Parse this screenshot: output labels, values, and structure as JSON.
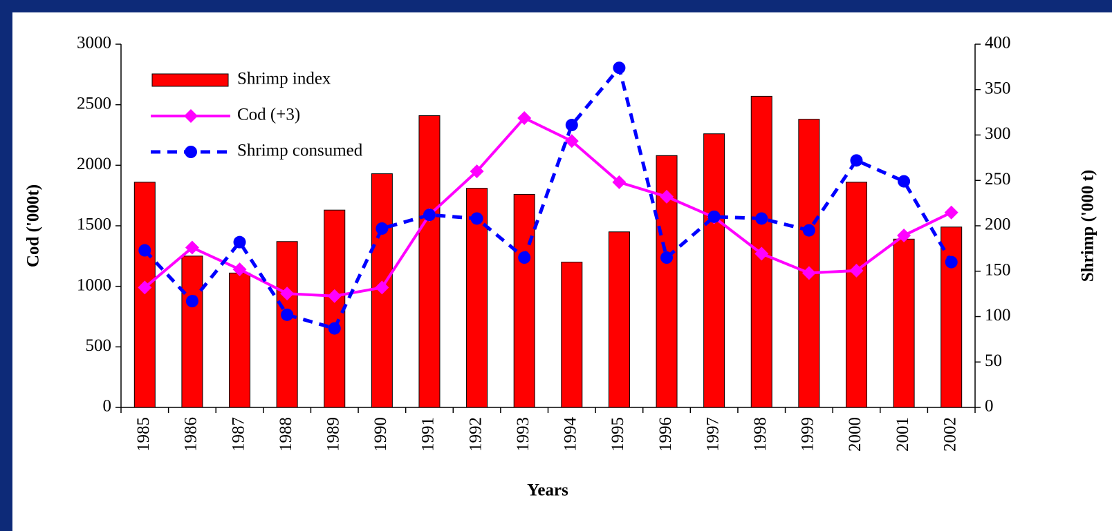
{
  "chart_data": {
    "type": "bar_line",
    "x_label": "Years",
    "y_label": "Cod ('000t)",
    "y2_label": "Shrimp ('000 t)",
    "categories": [
      "1985",
      "1986",
      "1987",
      "1988",
      "1989",
      "1990",
      "1991",
      "1992",
      "1993",
      "1994",
      "1995",
      "1996",
      "1997",
      "1998",
      "1999",
      "2000",
      "2001",
      "2002"
    ],
    "series": [
      {
        "name": "Shrimp index",
        "type": "bar",
        "color": "#ff0000",
        "axis": "y",
        "values": [
          1860,
          1250,
          1110,
          1370,
          1630,
          1930,
          2410,
          1810,
          1760,
          1200,
          1450,
          2080,
          2260,
          2570,
          2380,
          1860,
          1390,
          1490
        ]
      },
      {
        "name": "Cod (+3)",
        "type": "line",
        "marker": "diamond",
        "dash": false,
        "color": "#ff00ff",
        "axis": "y",
        "values": [
          990,
          1320,
          1140,
          940,
          920,
          990,
          1590,
          1950,
          2390,
          2200,
          1860,
          1740,
          1570,
          1270,
          1110,
          1130,
          1420,
          1610
        ]
      },
      {
        "name": "Shrimp consumed",
        "type": "line",
        "marker": "circle",
        "dash": true,
        "color": "#0000ff",
        "axis": "y2",
        "values": [
          173,
          117,
          182,
          102,
          87,
          197,
          212,
          208,
          165,
          311,
          374,
          165,
          210,
          208,
          195,
          272,
          249,
          160
        ]
      }
    ],
    "ylim": [
      0,
      3000
    ],
    "yticks": [
      0,
      500,
      1000,
      1500,
      2000,
      2500,
      3000
    ],
    "y2lim": [
      0,
      400
    ],
    "y2ticks": [
      0,
      50,
      100,
      150,
      200,
      250,
      300,
      350,
      400
    ],
    "grid": false,
    "legend": "upper left"
  }
}
